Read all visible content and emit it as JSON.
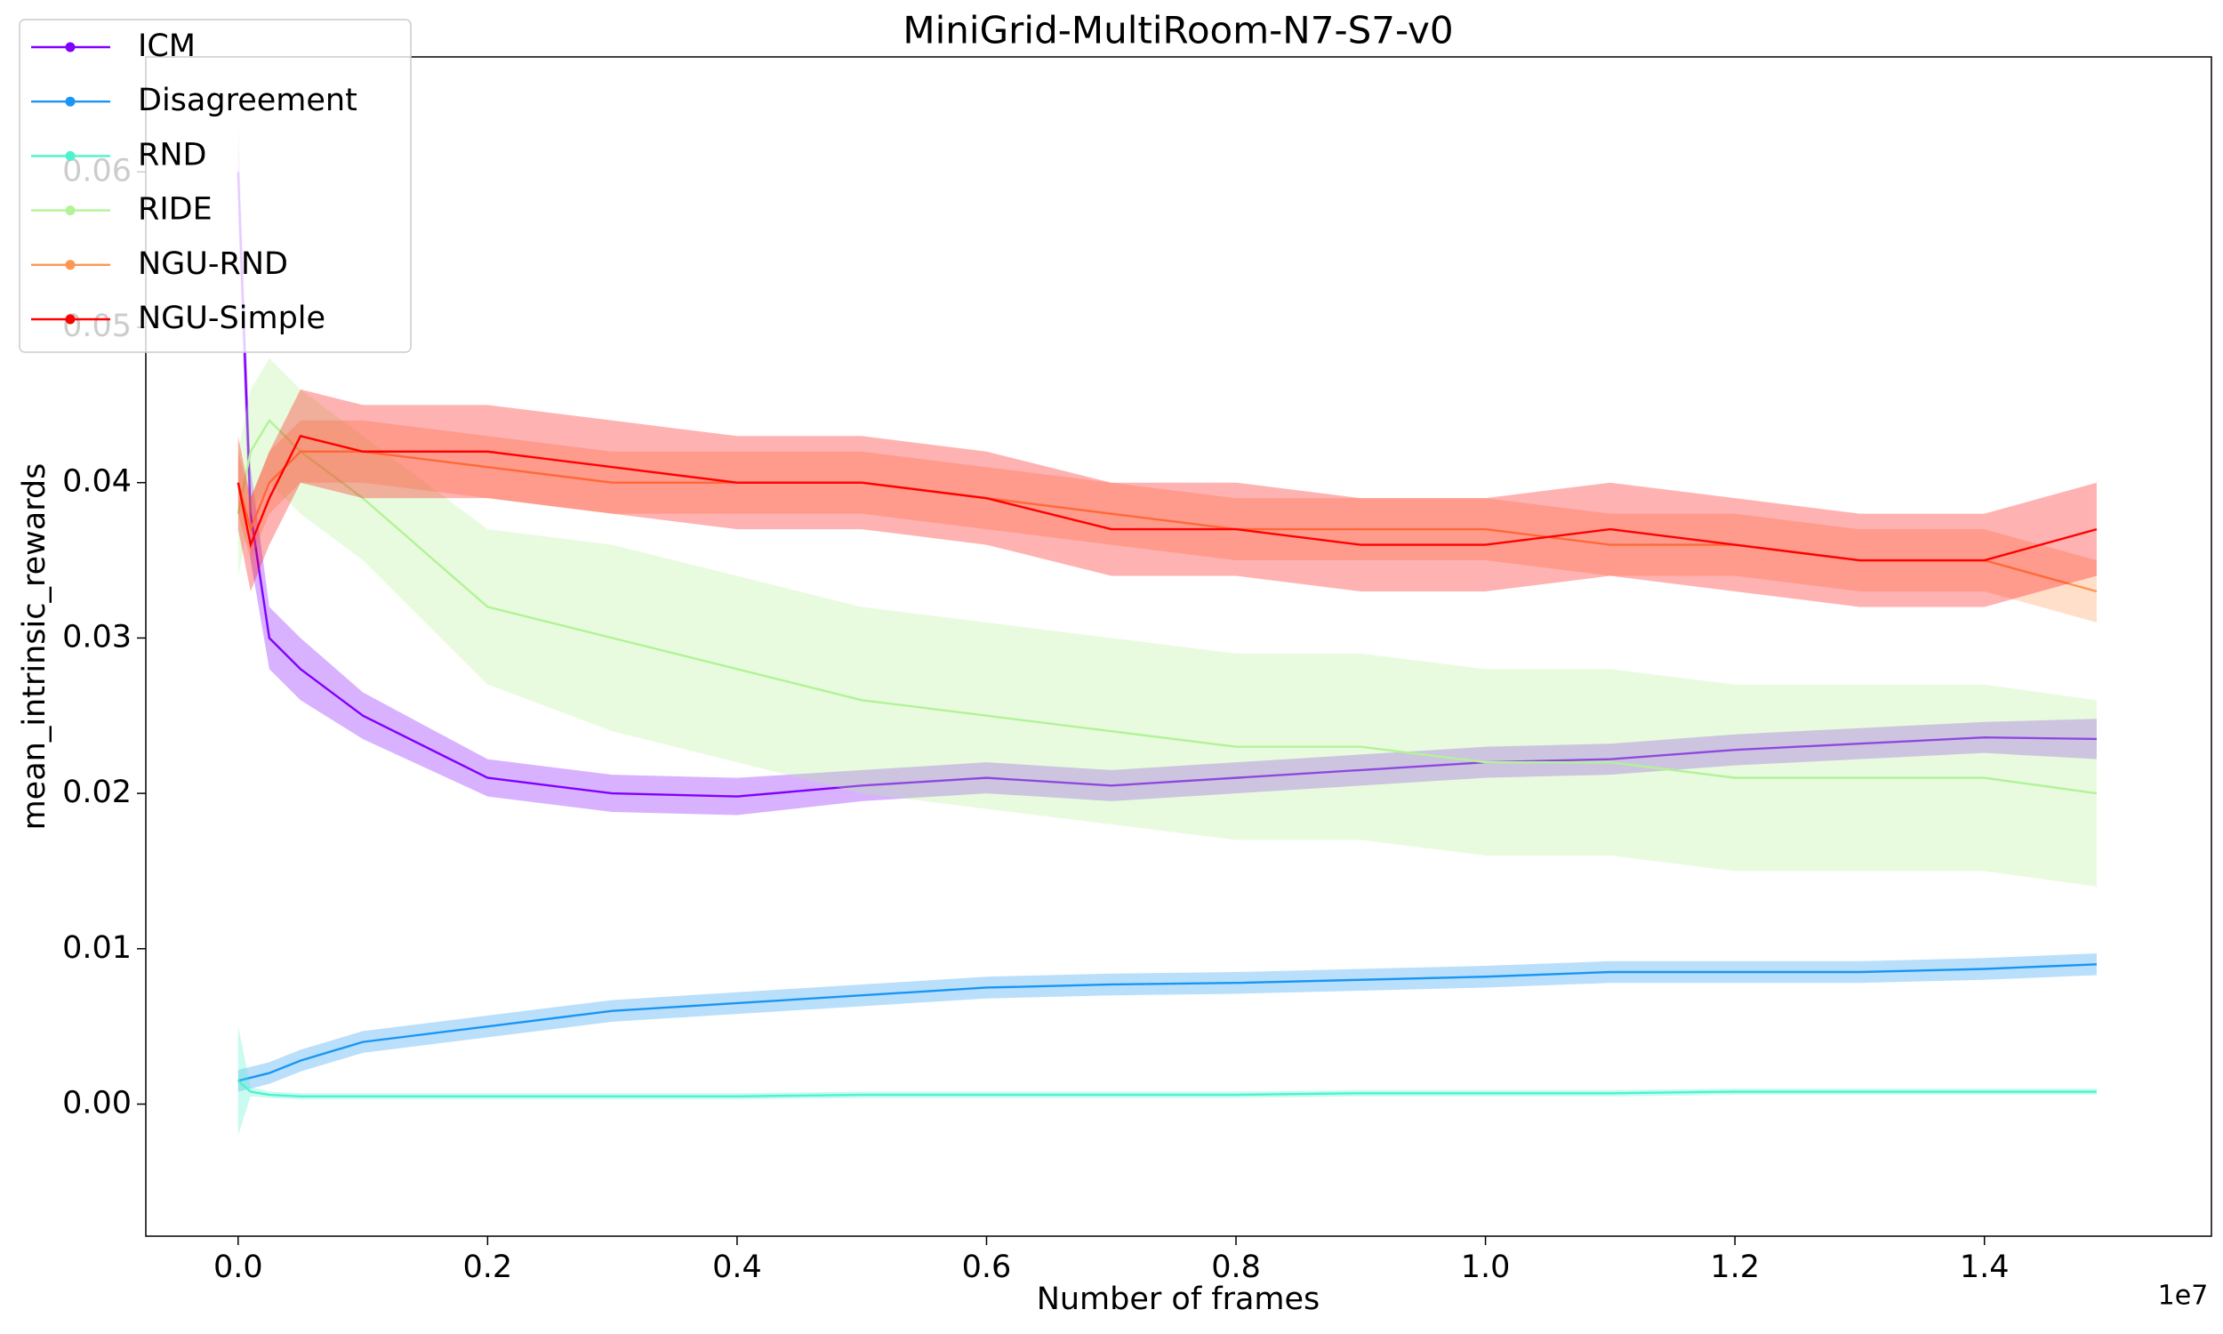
{
  "chart_data": {
    "type": "line",
    "title": "MiniGrid-MultiRoom-N7-S7-v0",
    "x_label": "Number of frames",
    "y_label": "mean_intrinsic_rewards",
    "x_offset_label": "1e7",
    "legend": "upper left",
    "band_opacity": 0.3,
    "xlim": [
      -740000,
      15820000
    ],
    "ylim": [
      -0.0085,
      0.0674
    ],
    "xticks": [
      {
        "value": 0,
        "label": "0.0"
      },
      {
        "value": 2000000,
        "label": "0.2"
      },
      {
        "value": 4000000,
        "label": "0.4"
      },
      {
        "value": 6000000,
        "label": "0.6"
      },
      {
        "value": 8000000,
        "label": "0.8"
      },
      {
        "value": 10000000,
        "label": "1.0"
      },
      {
        "value": 12000000,
        "label": "1.2"
      },
      {
        "value": 14000000,
        "label": "1.4"
      }
    ],
    "yticks": [
      {
        "value": 0,
        "label": "0.00"
      },
      {
        "value": 0.01,
        "label": "0.01"
      },
      {
        "value": 0.02,
        "label": "0.02"
      },
      {
        "value": 0.03,
        "label": "0.03"
      },
      {
        "value": 0.04,
        "label": "0.04"
      },
      {
        "value": 0.05,
        "label": "0.05"
      },
      {
        "value": 0.06,
        "label": "0.06"
      }
    ],
    "x": [
      0,
      100000,
      250000,
      500000,
      1000000,
      2000000,
      3000000,
      4000000,
      5000000,
      6000000,
      7000000,
      8000000,
      9000000,
      10000000,
      11000000,
      12000000,
      13000000,
      14000000,
      14900000
    ],
    "series": [
      {
        "name": "ICM",
        "color": "#8000ff",
        "values": [
          0.06,
          0.038,
          0.03,
          0.028,
          0.025,
          0.021,
          0.02,
          0.0198,
          0.0205,
          0.021,
          0.0205,
          0.021,
          0.0215,
          0.022,
          0.0222,
          0.0228,
          0.0232,
          0.0236,
          0.0235
        ],
        "lower": [
          0.057,
          0.035,
          0.028,
          0.026,
          0.0235,
          0.0198,
          0.0188,
          0.0186,
          0.0195,
          0.02,
          0.0195,
          0.02,
          0.0205,
          0.021,
          0.0212,
          0.0218,
          0.0222,
          0.0226,
          0.0222
        ],
        "upper": [
          0.063,
          0.041,
          0.032,
          0.03,
          0.0265,
          0.0222,
          0.0212,
          0.021,
          0.0215,
          0.022,
          0.0215,
          0.022,
          0.0225,
          0.023,
          0.0232,
          0.0238,
          0.0242,
          0.0246,
          0.0248
        ]
      },
      {
        "name": "Disagreement",
        "color": "#1996f3",
        "values": [
          0.0015,
          0.0017,
          0.002,
          0.0028,
          0.004,
          0.005,
          0.006,
          0.0065,
          0.007,
          0.0075,
          0.0077,
          0.0078,
          0.008,
          0.0082,
          0.0085,
          0.0085,
          0.0085,
          0.0087,
          0.009
        ],
        "lower": [
          0.0008,
          0.001,
          0.0013,
          0.0021,
          0.0033,
          0.0043,
          0.0053,
          0.0058,
          0.0063,
          0.0068,
          0.007,
          0.0071,
          0.0073,
          0.0075,
          0.0078,
          0.0078,
          0.0078,
          0.008,
          0.0083
        ],
        "upper": [
          0.0022,
          0.0024,
          0.0027,
          0.0035,
          0.0047,
          0.0057,
          0.0067,
          0.0072,
          0.0077,
          0.0082,
          0.0084,
          0.0085,
          0.0087,
          0.0089,
          0.0092,
          0.0092,
          0.0092,
          0.0094,
          0.0097
        ]
      },
      {
        "name": "RND",
        "color": "#4df3ce",
        "values": [
          0.0015,
          0.0008,
          0.0006,
          0.0005,
          0.0005,
          0.0005,
          0.0005,
          0.0005,
          0.0006,
          0.0006,
          0.0006,
          0.0006,
          0.0007,
          0.0007,
          0.0007,
          0.0008,
          0.0008,
          0.0008,
          0.0008
        ],
        "lower": [
          -0.002,
          0.0005,
          0.0004,
          0.0003,
          0.0003,
          0.0003,
          0.0003,
          0.0003,
          0.0004,
          0.0004,
          0.0004,
          0.0004,
          0.0005,
          0.0005,
          0.0005,
          0.0006,
          0.0006,
          0.0006,
          0.0006
        ],
        "upper": [
          0.005,
          0.0011,
          0.0008,
          0.0007,
          0.0007,
          0.0007,
          0.0007,
          0.0007,
          0.0008,
          0.0008,
          0.0008,
          0.0008,
          0.0009,
          0.0009,
          0.0009,
          0.001,
          0.001,
          0.001,
          0.001
        ]
      },
      {
        "name": "RIDE",
        "color": "#b2f396",
        "values": [
          0.038,
          0.042,
          0.044,
          0.042,
          0.039,
          0.032,
          0.03,
          0.028,
          0.026,
          0.025,
          0.024,
          0.023,
          0.023,
          0.022,
          0.022,
          0.021,
          0.021,
          0.021,
          0.02
        ],
        "lower": [
          0.034,
          0.038,
          0.04,
          0.038,
          0.035,
          0.027,
          0.024,
          0.022,
          0.02,
          0.019,
          0.018,
          0.017,
          0.017,
          0.016,
          0.016,
          0.015,
          0.015,
          0.015,
          0.014
        ],
        "upper": [
          0.042,
          0.046,
          0.048,
          0.046,
          0.043,
          0.037,
          0.036,
          0.034,
          0.032,
          0.031,
          0.03,
          0.029,
          0.029,
          0.028,
          0.028,
          0.027,
          0.027,
          0.027,
          0.026
        ]
      },
      {
        "name": "NGU-RND",
        "color": "#ff964f",
        "values": [
          0.04,
          0.037,
          0.04,
          0.042,
          0.042,
          0.041,
          0.04,
          0.04,
          0.04,
          0.039,
          0.038,
          0.037,
          0.037,
          0.037,
          0.036,
          0.036,
          0.035,
          0.035,
          0.033
        ],
        "lower": [
          0.038,
          0.035,
          0.038,
          0.04,
          0.04,
          0.039,
          0.038,
          0.038,
          0.038,
          0.037,
          0.036,
          0.035,
          0.035,
          0.035,
          0.034,
          0.034,
          0.033,
          0.033,
          0.031
        ],
        "upper": [
          0.042,
          0.039,
          0.042,
          0.044,
          0.044,
          0.043,
          0.042,
          0.042,
          0.042,
          0.041,
          0.04,
          0.039,
          0.039,
          0.039,
          0.038,
          0.038,
          0.037,
          0.037,
          0.035
        ]
      },
      {
        "name": "NGU-Simple",
        "color": "#ff0000",
        "values": [
          0.04,
          0.036,
          0.039,
          0.043,
          0.042,
          0.042,
          0.041,
          0.04,
          0.04,
          0.039,
          0.037,
          0.037,
          0.036,
          0.036,
          0.037,
          0.036,
          0.035,
          0.035,
          0.037
        ],
        "lower": [
          0.037,
          0.033,
          0.036,
          0.04,
          0.039,
          0.039,
          0.038,
          0.037,
          0.037,
          0.036,
          0.034,
          0.034,
          0.033,
          0.033,
          0.034,
          0.033,
          0.032,
          0.032,
          0.034
        ],
        "upper": [
          0.043,
          0.039,
          0.042,
          0.046,
          0.045,
          0.045,
          0.044,
          0.043,
          0.043,
          0.042,
          0.04,
          0.04,
          0.039,
          0.039,
          0.04,
          0.039,
          0.038,
          0.038,
          0.04
        ]
      }
    ]
  }
}
